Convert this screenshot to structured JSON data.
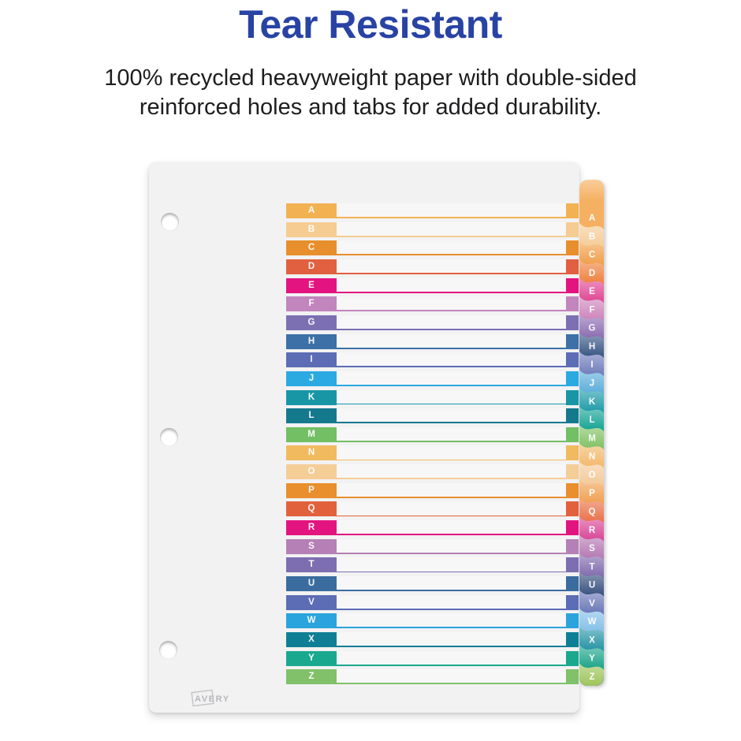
{
  "header": {
    "title": "Tear Resistant",
    "subtitle_line1": "100% recycled heavyweight paper with double-sided",
    "subtitle_line2": "reinforced holes and tabs for added durability."
  },
  "palette": {
    "title_blue": "#2843A3",
    "body_text": "#1D1D1F",
    "sheet_background": "#F2F2F3",
    "row_band": "#F7F7F8",
    "letter_text": "#FFFFFF",
    "brand_gray": "#B7B7BB"
  },
  "sheet": {
    "brand": "AVERY",
    "hole_count": 3
  },
  "index": {
    "letters": [
      {
        "letter": "A",
        "row_color": "#F2B251",
        "tab_color": "#F5B061"
      },
      {
        "letter": "B",
        "row_color": "#F5CD92",
        "tab_color": "#F5CA94"
      },
      {
        "letter": "C",
        "row_color": "#E88F2D",
        "tab_color": "#F09B45"
      },
      {
        "letter": "D",
        "row_color": "#E06040",
        "tab_color": "#EE7D38"
      },
      {
        "letter": "E",
        "row_color": "#E31480",
        "tab_color": "#DE4290"
      },
      {
        "letter": "F",
        "row_color": "#C285BD",
        "tab_color": "#CC80B8"
      },
      {
        "letter": "G",
        "row_color": "#7C70B3",
        "tab_color": "#8767AE"
      },
      {
        "letter": "H",
        "row_color": "#3C70A6",
        "tab_color": "#32507F"
      },
      {
        "letter": "I",
        "row_color": "#5C6CB5",
        "tab_color": "#6B78B9"
      },
      {
        "letter": "J",
        "row_color": "#2BAAE1",
        "tab_color": "#57ABD9"
      },
      {
        "letter": "K",
        "row_color": "#1896A6",
        "tab_color": "#1898A5"
      },
      {
        "letter": "L",
        "row_color": "#15798E",
        "tab_color": "#0FA091"
      },
      {
        "letter": "M",
        "row_color": "#73BF64",
        "tab_color": "#7DBF5F"
      },
      {
        "letter": "N",
        "row_color": "#F2BA5E",
        "tab_color": "#F2B667"
      },
      {
        "letter": "O",
        "row_color": "#F5CD97",
        "tab_color": "#F3C896"
      },
      {
        "letter": "P",
        "row_color": "#E98F2E",
        "tab_color": "#F09C4B"
      },
      {
        "letter": "Q",
        "row_color": "#E2613D",
        "tab_color": "#E96C43"
      },
      {
        "letter": "R",
        "row_color": "#E31480",
        "tab_color": "#D74193"
      },
      {
        "letter": "S",
        "row_color": "#B580B5",
        "tab_color": "#B274AF"
      },
      {
        "letter": "T",
        "row_color": "#7C6EB1",
        "tab_color": "#7C65AA"
      },
      {
        "letter": "U",
        "row_color": "#3B6C9F",
        "tab_color": "#314B7B"
      },
      {
        "letter": "V",
        "row_color": "#5C6CB5",
        "tab_color": "#6573B5"
      },
      {
        "letter": "W",
        "row_color": "#2BA4DD",
        "tab_color": "#80BDE7"
      },
      {
        "letter": "X",
        "row_color": "#107F95",
        "tab_color": "#2090A1"
      },
      {
        "letter": "Y",
        "row_color": "#1AA98F",
        "tab_color": "#17A186"
      },
      {
        "letter": "Z",
        "row_color": "#80C169",
        "tab_color": "#98C153"
      }
    ]
  }
}
